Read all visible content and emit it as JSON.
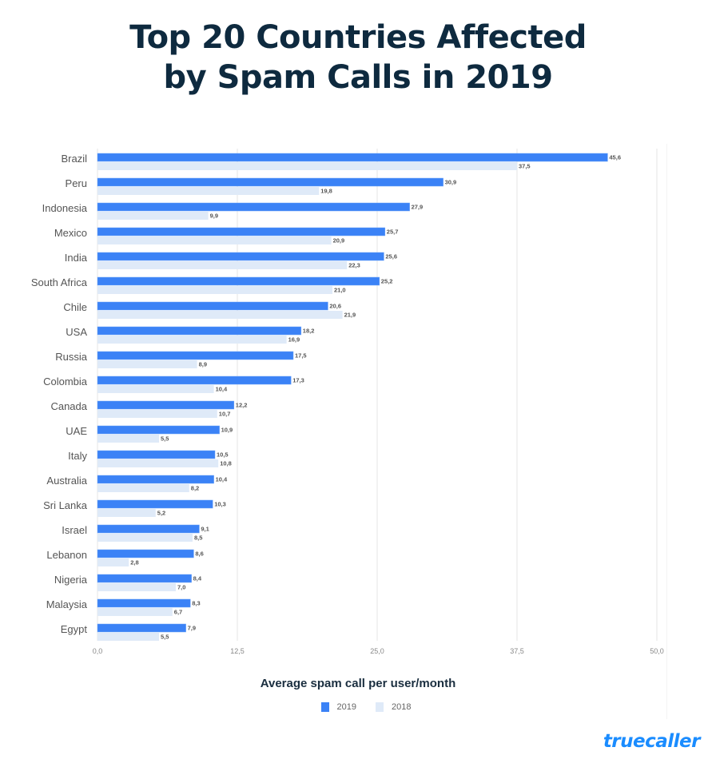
{
  "title_lines": [
    "Top 20 Countries Affected",
    "by Spam Calls in 2019"
  ],
  "brand": "truecaller",
  "colors": {
    "title": "#0e2a3f",
    "series_2019": "#3b82f6",
    "series_2018": "#dfeaf8",
    "brand": "#1a8cff",
    "grid": "#e6e6e6"
  },
  "chart_data": {
    "type": "bar",
    "orientation": "horizontal",
    "title": "Top 20 Countries Affected by Spam Calls in 2019",
    "xlabel": "Average spam call per user/month",
    "ylabel": "",
    "xlim": [
      0,
      50
    ],
    "x_ticks": [
      0,
      12.5,
      25,
      37.5,
      50
    ],
    "x_tick_labels": [
      "0,0",
      "12,5",
      "25,0",
      "37,5",
      "50,0"
    ],
    "grid": true,
    "legend_position": "bottom-center",
    "categories": [
      "Brazil",
      "Peru",
      "Indonesia",
      "Mexico",
      "India",
      "South Africa",
      "Chile",
      "USA",
      "Russia",
      "Colombia",
      "Canada",
      "UAE",
      "Italy",
      "Australia",
      "Sri Lanka",
      "Israel",
      "Lebanon",
      "Nigeria",
      "Malaysia",
      "Egypt"
    ],
    "series": [
      {
        "name": "2019",
        "values": [
          45.6,
          30.9,
          27.9,
          25.7,
          25.6,
          25.2,
          20.6,
          18.2,
          17.5,
          17.3,
          12.2,
          10.9,
          10.5,
          10.4,
          10.3,
          9.1,
          8.6,
          8.4,
          8.3,
          7.9
        ]
      },
      {
        "name": "2018",
        "values": [
          37.5,
          19.8,
          9.9,
          20.9,
          22.3,
          21.0,
          21.9,
          16.9,
          8.9,
          10.4,
          10.7,
          5.5,
          10.8,
          8.2,
          5.2,
          8.5,
          2.8,
          7.0,
          6.7,
          5.5
        ]
      }
    ],
    "decimal_separator": ","
  }
}
